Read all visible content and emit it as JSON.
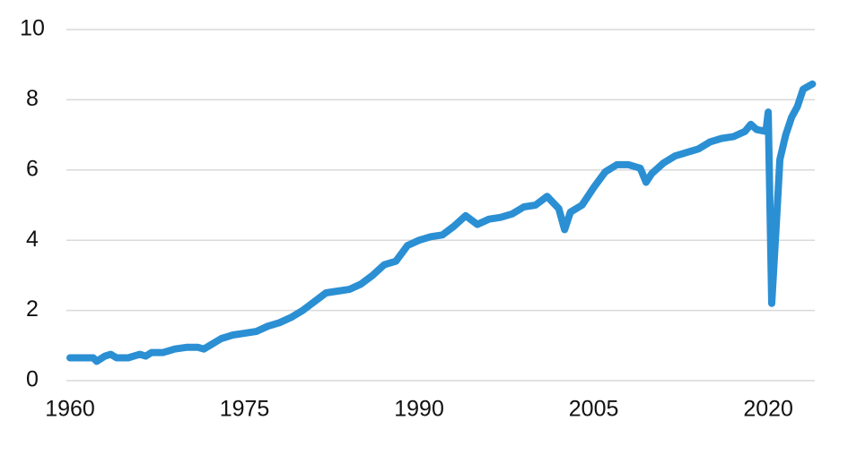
{
  "chart_data": {
    "type": "line",
    "x": [
      1960,
      1962,
      1962.3,
      1963,
      1963.5,
      1964,
      1965,
      1966,
      1966.5,
      1967,
      1968,
      1969,
      1970,
      1971,
      1971.5,
      1972,
      1973,
      1974,
      1975,
      1976,
      1977,
      1978,
      1979,
      1980,
      1981,
      1982,
      1983,
      1984,
      1985,
      1986,
      1987,
      1988,
      1989,
      1990,
      1991,
      1992,
      1993,
      1994,
      1995,
      1996,
      1997,
      1998,
      1999,
      2000,
      2001,
      2002,
      2002.5,
      2003,
      2004,
      2005,
      2006,
      2007,
      2008,
      2009,
      2009.5,
      2010,
      2011,
      2012,
      2013,
      2014,
      2015,
      2016,
      2017,
      2018,
      2018.5,
      2019,
      2019.8,
      2020,
      2020.3,
      2020.7,
      2021,
      2021.5,
      2022,
      2022.5,
      2023,
      2023.8
    ],
    "values": [
      0.65,
      0.65,
      0.55,
      0.7,
      0.75,
      0.65,
      0.65,
      0.75,
      0.7,
      0.8,
      0.8,
      0.9,
      0.95,
      0.95,
      0.9,
      1.0,
      1.2,
      1.3,
      1.35,
      1.4,
      1.55,
      1.65,
      1.8,
      2.0,
      2.25,
      2.5,
      2.55,
      2.6,
      2.75,
      3.0,
      3.3,
      3.4,
      3.85,
      4.0,
      4.1,
      4.15,
      4.4,
      4.7,
      4.45,
      4.6,
      4.65,
      4.75,
      4.95,
      5.0,
      5.25,
      4.9,
      4.3,
      4.8,
      5.0,
      5.5,
      5.95,
      6.15,
      6.15,
      6.05,
      5.65,
      5.9,
      6.2,
      6.4,
      6.5,
      6.6,
      6.8,
      6.9,
      6.95,
      7.1,
      7.3,
      7.15,
      7.1,
      7.65,
      2.2,
      4.5,
      6.3,
      7.0,
      7.5,
      7.8,
      8.3,
      8.45
    ],
    "color": "#2b8fd3",
    "xlim": [
      1960,
      2024
    ],
    "xticks": [
      1960,
      1975,
      1990,
      2005,
      2020
    ],
    "ylim": [
      0,
      10
    ],
    "yticks": [
      0,
      2,
      4,
      6,
      8,
      10
    ],
    "grid": true
  }
}
